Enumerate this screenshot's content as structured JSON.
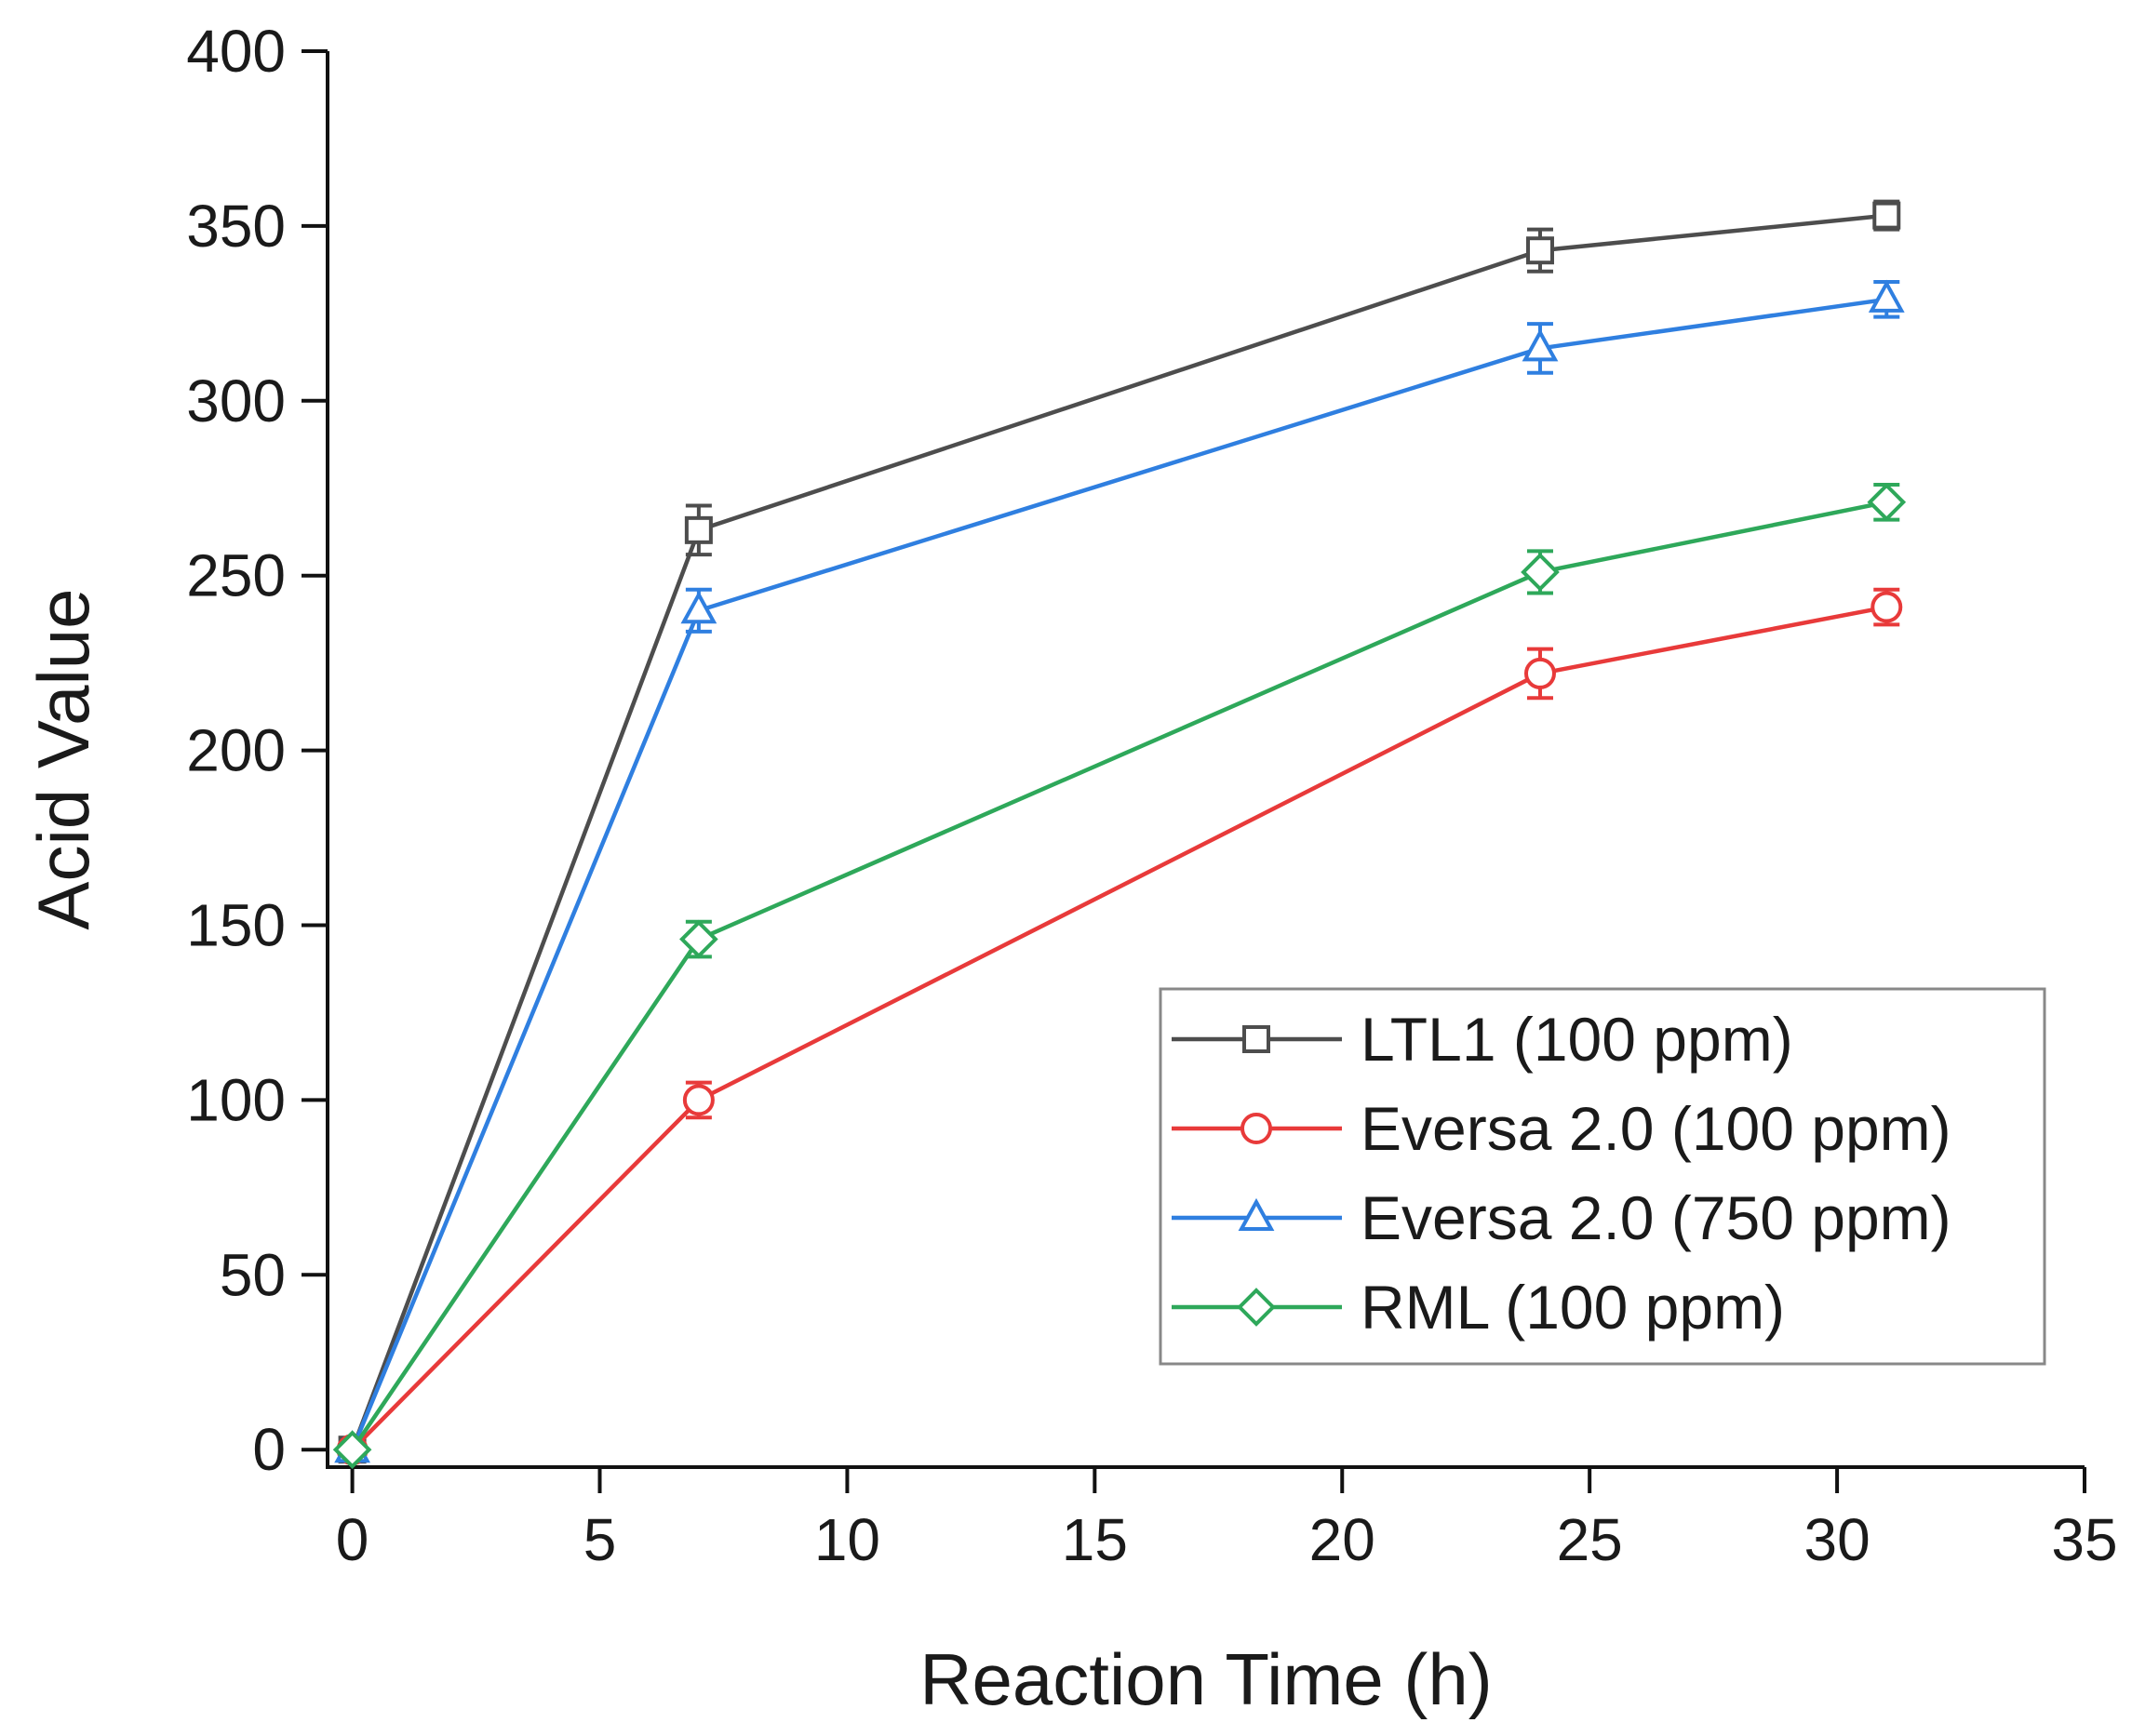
{
  "chart_data": {
    "type": "line",
    "title": "",
    "xlabel": "Reaction Time (h)",
    "ylabel": "Acid Value",
    "xlim": [
      -0.5,
      35
    ],
    "ylim": [
      -5,
      400
    ],
    "x_ticks": [
      0,
      5,
      10,
      15,
      20,
      25,
      30,
      35
    ],
    "y_ticks": [
      0,
      50,
      100,
      150,
      200,
      250,
      300,
      350,
      400
    ],
    "x_tick_labels": [
      "0",
      "5",
      "10",
      "15",
      "20",
      "25",
      "30",
      "35"
    ],
    "y_tick_labels": [
      "0",
      "50",
      "100",
      "150",
      "200",
      "250",
      "300",
      "350",
      "400"
    ],
    "grid": false,
    "legend_position": "bottom-right",
    "series": [
      {
        "name": "LTL1 (100 ppm)",
        "color": "#4d4d4d",
        "marker": "square",
        "x": [
          0,
          7,
          24,
          31
        ],
        "y": [
          0,
          263,
          343,
          353
        ],
        "err": [
          0,
          7,
          6,
          4
        ]
      },
      {
        "name": "Eversa 2.0 (100 ppm)",
        "color": "#e83a3a",
        "marker": "circle",
        "x": [
          0,
          7,
          24,
          31
        ],
        "y": [
          0,
          100,
          222,
          241
        ],
        "err": [
          0,
          5,
          7,
          5
        ]
      },
      {
        "name": "Eversa 2.0 (750 ppm)",
        "color": "#2f7fe0",
        "marker": "triangle",
        "x": [
          0,
          7,
          24,
          31
        ],
        "y": [
          0,
          240,
          315,
          329
        ],
        "err": [
          0,
          6,
          7,
          5
        ]
      },
      {
        "name": "RML (100 ppm)",
        "color": "#2ea85a",
        "marker": "diamond",
        "x": [
          0,
          7,
          24,
          31
        ],
        "y": [
          0,
          146,
          251,
          271
        ],
        "err": [
          0,
          5,
          6,
          5
        ]
      }
    ]
  }
}
